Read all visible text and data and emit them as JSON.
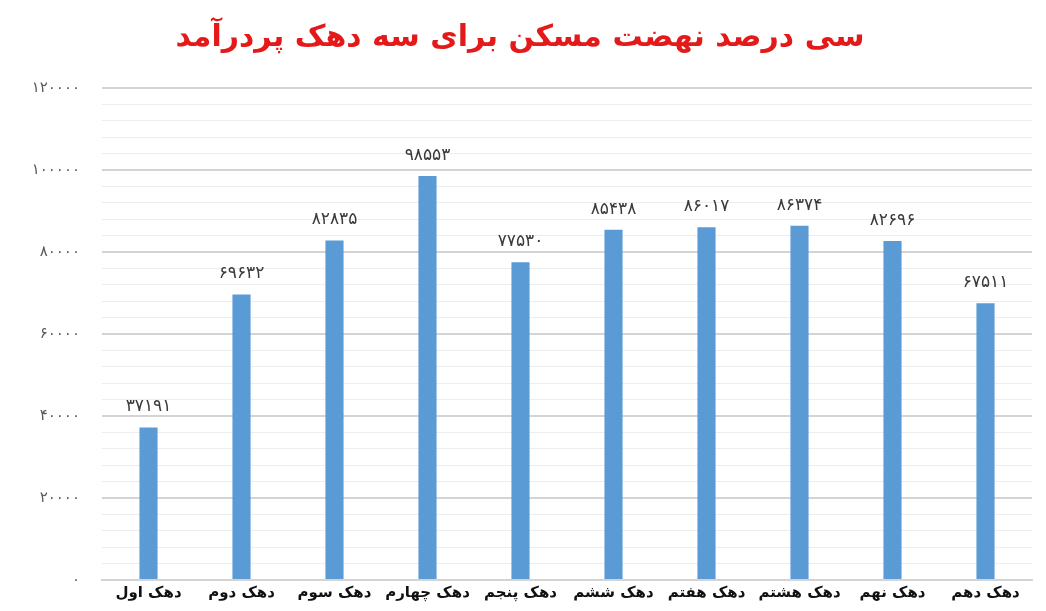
{
  "chart_data": {
    "type": "bar",
    "title": "سی درصد نهضت مسکن برای سه دهک پردرآمد",
    "categories": [
      "دهک اول",
      "دهک دوم",
      "دهک سوم",
      "دهک چهارم",
      "دهک پنجم",
      "دهک ششم",
      "دهک هفتم",
      "دهک هشتم",
      "دهک نهم",
      "دهک دهم"
    ],
    "values": [
      37191,
      69632,
      82835,
      98553,
      77530,
      85438,
      86017,
      86374,
      82696,
      67511
    ],
    "value_labels": [
      "۳۷۱۹۱",
      "۶۹۶۳۲",
      "۸۲۸۳۵",
      "۹۸۵۵۳",
      "۷۷۵۳۰",
      "۸۵۴۳۸",
      "۸۶۰۱۷",
      "۸۶۳۷۴",
      "۸۲۶۹۶",
      "۶۷۵۱۱"
    ],
    "color": "#5b9bd5",
    "ylim": [
      0,
      120000
    ],
    "yticks": [
      {
        "value": 0,
        "label": "۰"
      },
      {
        "value": 4000,
        "label": null
      },
      {
        "value": 8000,
        "label": null
      },
      {
        "value": 12000,
        "label": null
      },
      {
        "value": 16000,
        "label": null
      },
      {
        "value": 20000,
        "label": "۲۰۰۰۰"
      },
      {
        "value": 24000,
        "label": null
      },
      {
        "value": 28000,
        "label": null
      },
      {
        "value": 32000,
        "label": null
      },
      {
        "value": 36000,
        "label": null
      },
      {
        "value": 40000,
        "label": "۴۰۰۰۰"
      },
      {
        "value": 44000,
        "label": null
      },
      {
        "value": 48000,
        "label": null
      },
      {
        "value": 52000,
        "label": null
      },
      {
        "value": 56000,
        "label": null
      },
      {
        "value": 60000,
        "label": "۶۰۰۰۰"
      },
      {
        "value": 64000,
        "label": null
      },
      {
        "value": 68000,
        "label": null
      },
      {
        "value": 72000,
        "label": null
      },
      {
        "value": 76000,
        "label": null
      },
      {
        "value": 80000,
        "label": "۸۰۰۰۰"
      },
      {
        "value": 84000,
        "label": null
      },
      {
        "value": 88000,
        "label": null
      },
      {
        "value": 92000,
        "label": null
      },
      {
        "value": 96000,
        "label": null
      },
      {
        "value": 100000,
        "label": "۱۰۰۰۰۰"
      },
      {
        "value": 104000,
        "label": null
      },
      {
        "value": 108000,
        "label": null
      },
      {
        "value": 112000,
        "label": null
      },
      {
        "value": 116000,
        "label": null
      },
      {
        "value": 120000,
        "label": "۱۲۰۰۰۰"
      }
    ],
    "grid": "y"
  }
}
